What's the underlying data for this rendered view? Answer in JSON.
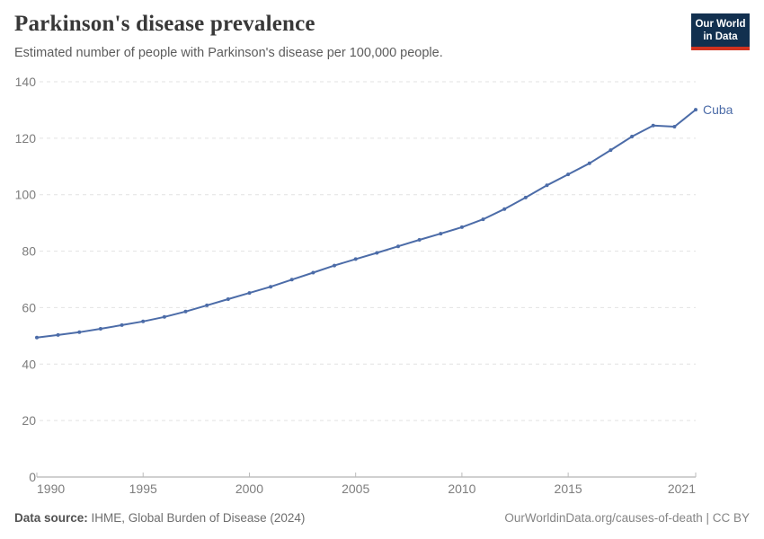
{
  "header": {
    "title": "Parkinson's disease prevalence",
    "subtitle": "Estimated number of people with Parkinson's disease per 100,000 people.",
    "logo": {
      "line1": "Our World",
      "line2": "in Data"
    }
  },
  "chart_data": {
    "type": "line",
    "title": "Parkinson's disease prevalence",
    "subtitle": "Estimated number of people with Parkinson's disease per 100,000 people.",
    "xlabel": "",
    "ylabel": "",
    "xlim": [
      1990,
      2021
    ],
    "ylim": [
      0,
      140
    ],
    "x_ticks": [
      1990,
      1995,
      2000,
      2005,
      2010,
      2015,
      2021
    ],
    "y_ticks": [
      0,
      20,
      40,
      60,
      80,
      100,
      120,
      140
    ],
    "grid": "horizontal-dashed",
    "legend_position": "end-of-line-label",
    "series": [
      {
        "name": "Cuba",
        "color": "#4c6ca8",
        "x": [
          1990,
          1991,
          1992,
          1993,
          1994,
          1995,
          1996,
          1997,
          1998,
          1999,
          2000,
          2001,
          2002,
          2003,
          2004,
          2005,
          2006,
          2007,
          2008,
          2009,
          2010,
          2011,
          2012,
          2013,
          2014,
          2015,
          2016,
          2017,
          2018,
          2019,
          2020,
          2021
        ],
        "values": [
          49.4,
          50.3,
          51.3,
          52.5,
          53.8,
          55.1,
          56.7,
          58.6,
          60.8,
          63.0,
          65.2,
          67.4,
          69.9,
          72.4,
          74.9,
          77.2,
          79.4,
          81.7,
          84.0,
          86.2,
          88.5,
          91.3,
          94.9,
          99.0,
          103.3,
          107.2,
          111.1,
          115.8,
          120.6,
          124.5,
          124.1,
          130.1
        ]
      }
    ]
  },
  "footer": {
    "source_label": "Data source:",
    "source_text": " IHME, Global Burden of Disease (2024)",
    "link_text": "OurWorldinData.org/causes-of-death | CC BY"
  },
  "colors": {
    "accent": "#4c6ca8",
    "grid": "#e2e2e2",
    "axis": "#a0a0a0",
    "axis_tick": "#bbbbbb",
    "tick_text": "#7d7d7d",
    "logo_bg": "#12304f",
    "logo_red": "#d0321f"
  }
}
